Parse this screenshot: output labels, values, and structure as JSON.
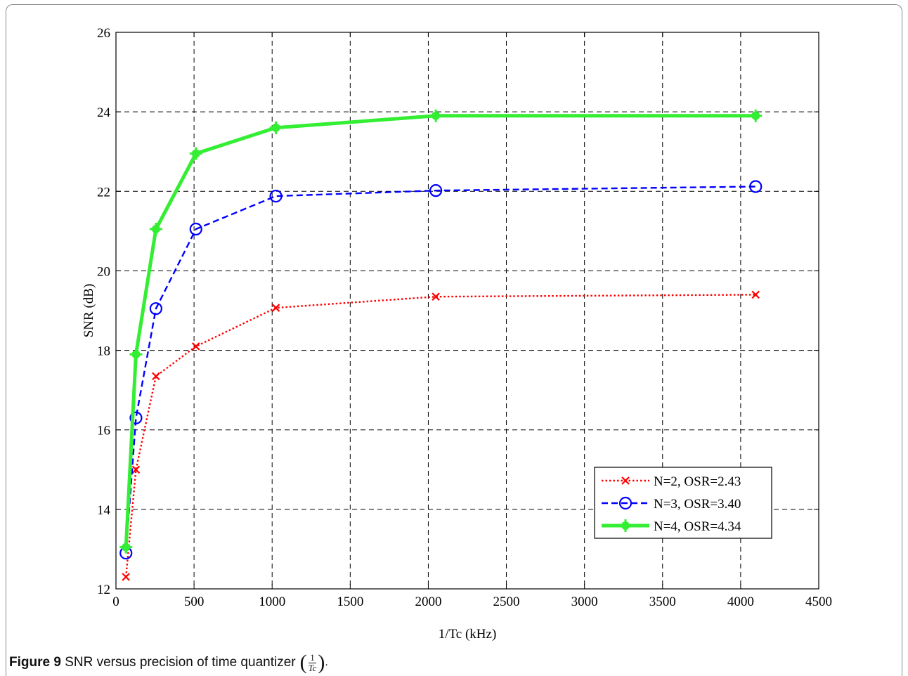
{
  "caption": {
    "figure_label": "Figure 9",
    "text": "SNR versus precision of time quantizer",
    "fraction_numerator": "1",
    "fraction_denominator": "Tc",
    "trailing": "."
  },
  "chart_data": {
    "type": "line",
    "title": "",
    "xlabel": "1/Tc (kHz)",
    "ylabel": "SNR (dB)",
    "xlim": [
      0,
      4500
    ],
    "ylim": [
      12,
      26
    ],
    "xticks": [
      0,
      500,
      1000,
      1500,
      2000,
      2500,
      3000,
      3500,
      4000,
      4500
    ],
    "yticks": [
      12,
      14,
      16,
      18,
      20,
      22,
      24,
      26
    ],
    "grid": true,
    "legend_position": "lower-right",
    "series": [
      {
        "name": "N=2, OSR=2.43",
        "color": "#ff0000",
        "line_style": "dotted",
        "marker": "x",
        "x": [
          64,
          128,
          256,
          512,
          1024,
          2048,
          4096
        ],
        "y": [
          12.3,
          15.0,
          17.35,
          18.1,
          19.07,
          19.35,
          19.4
        ]
      },
      {
        "name": "N=3, OSR=3.40",
        "color": "#0000ff",
        "line_style": "dashed",
        "marker": "circle",
        "x": [
          64,
          128,
          256,
          512,
          1024,
          2048,
          4096
        ],
        "y": [
          12.9,
          16.3,
          19.05,
          21.05,
          21.88,
          22.02,
          22.12
        ]
      },
      {
        "name": "N=4, OSR=4.34",
        "color": "#33ee33",
        "line_style": "solid",
        "marker": "star",
        "x": [
          64,
          128,
          256,
          512,
          1024,
          2048,
          4096
        ],
        "y": [
          13.05,
          17.9,
          21.05,
          22.95,
          23.6,
          23.9,
          23.9
        ]
      }
    ]
  }
}
